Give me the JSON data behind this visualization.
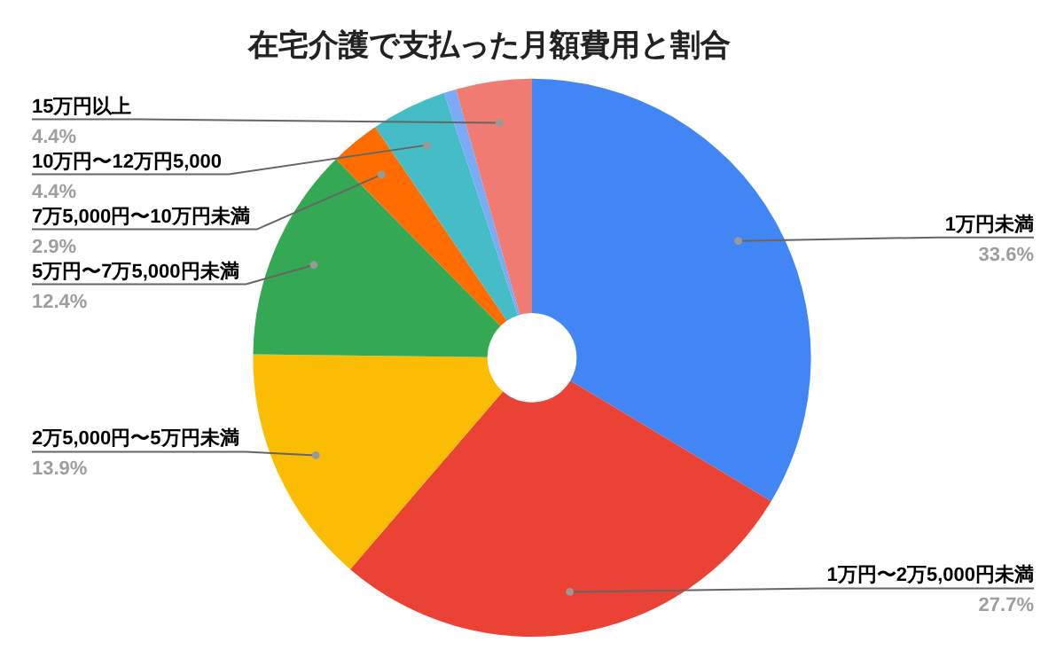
{
  "chart_data": {
    "type": "donut",
    "title": "在宅介護で支払った月額費用と割合",
    "categories": [
      "1万円未満",
      "1万円〜2万5,000円未満",
      "2万5,000円〜5万円未満",
      "5万円〜7万5,000円未満",
      "7万5,000円〜10万円未満",
      "10万円〜12万円5,000",
      null,
      "15万円以上"
    ],
    "values": [
      33.6,
      27.7,
      13.9,
      12.4,
      2.9,
      4.4,
      0.7,
      4.4
    ],
    "value_labels": [
      "33.6%",
      "27.7%",
      "13.9%",
      "12.4%",
      "2.9%",
      "4.4%",
      null,
      "4.4%"
    ],
    "colors": [
      "#4285f4",
      "#ea4335",
      "#fbbc04",
      "#34a853",
      "#ff6d01",
      "#46bdc6",
      "#7baaf7",
      "#f07b72"
    ],
    "legend": false
  }
}
